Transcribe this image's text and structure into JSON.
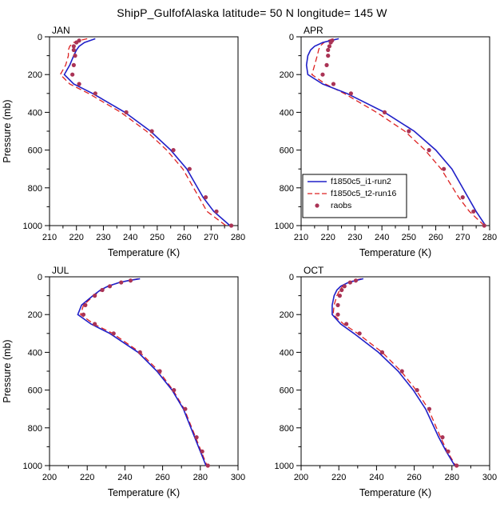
{
  "title": "ShipP_GulfofAlaska  latitude= 50 N longitude= 145 W",
  "colors": {
    "run2": "#2020c8",
    "run16": "#dd2222",
    "raobs": "#aa3355",
    "axis": "#000000"
  },
  "chart_data": {
    "type": "line",
    "title": "ShipP_GulfofAlaska  latitude= 50 N longitude= 145 W",
    "legend": {
      "panel": "APR",
      "position": "lower-left",
      "entries": [
        "f1850c5_i1-run2",
        "f1850c5_t2-run16",
        "raobs"
      ]
    },
    "pressure_levels": [
      10,
      20,
      30,
      50,
      70,
      100,
      150,
      200,
      250,
      300,
      400,
      500,
      600,
      700,
      850,
      925,
      1000
    ],
    "panels": [
      {
        "title": "JAN",
        "xlabel": "Temperature (K)",
        "ylabel": "Pressure (mb)",
        "show_ylabel": true,
        "legend": false,
        "xlim": [
          210,
          280
        ],
        "xticks": [
          210,
          220,
          230,
          240,
          250,
          260,
          270,
          280
        ],
        "xminor": 5,
        "ylim": [
          0,
          1000
        ],
        "yticks": [
          0,
          200,
          400,
          600,
          800,
          1000
        ],
        "yminor": 100,
        "series": [
          {
            "name": "f1850c5_i1-run2",
            "style": "solid",
            "color": "run2",
            "pressure": [
              10,
              20,
              30,
              50,
              70,
              100,
              150,
              200,
              250,
              300,
              400,
              500,
              600,
              700,
              850,
              925,
              1000
            ],
            "values": [
              227,
              225,
              223,
              221,
              220,
              219,
              217.5,
              215.5,
              219,
              226,
              238,
              247.5,
              255,
              261,
              267,
              271,
              277
            ]
          },
          {
            "name": "f1850c5_t2-run16",
            "style": "dashed",
            "color": "run16",
            "pressure": [
              10,
              20,
              30,
              50,
              70,
              100,
              150,
              200,
              250,
              300,
              400,
              500,
              600,
              700,
              850,
              925,
              1000
            ],
            "values": [
              224,
              221,
              219,
              217.5,
              217,
              217,
              216,
              214,
              217.5,
              224.5,
              236.5,
              246,
              253.5,
              259.5,
              265.5,
              268.5,
              275.5
            ]
          },
          {
            "name": "raobs",
            "style": "dots",
            "color": "raobs",
            "pressure": [
              20,
              30,
              50,
              70,
              100,
              150,
              200,
              250,
              300,
              400,
              500,
              600,
              700,
              850,
              925,
              1000
            ],
            "values": [
              221,
              220,
              219,
              219,
              219.5,
              219,
              218.5,
              221,
              227,
              238.5,
              248,
              256,
              262,
              268,
              272,
              277.5
            ]
          }
        ]
      },
      {
        "title": "APR",
        "xlabel": "Temperature (K)",
        "ylabel": "Pressure (mb)",
        "show_ylabel": false,
        "legend": true,
        "xlim": [
          210,
          280
        ],
        "xticks": [
          210,
          220,
          230,
          240,
          250,
          260,
          270,
          280
        ],
        "xminor": 5,
        "ylim": [
          0,
          1000
        ],
        "yticks": [
          0,
          200,
          400,
          600,
          800,
          1000
        ],
        "yminor": 100,
        "series": [
          {
            "name": "f1850c5_i1-run2",
            "style": "solid",
            "color": "run2",
            "pressure": [
              10,
              20,
              30,
              50,
              70,
              100,
              150,
              200,
              250,
              300,
              400,
              500,
              600,
              700,
              850,
              925,
              1000
            ],
            "values": [
              224,
              221,
              218,
              215,
              213.5,
              212.5,
              212,
              212.5,
              218,
              227,
              241,
              252,
              260,
              266,
              272,
              275,
              278.5
            ]
          },
          {
            "name": "f1850c5_t2-run16",
            "style": "dashed",
            "color": "run16",
            "pressure": [
              10,
              20,
              30,
              50,
              70,
              100,
              150,
              200,
              250,
              300,
              400,
              500,
              600,
              700,
              850,
              925,
              1000
            ],
            "values": [
              222,
              220,
              218.5,
              217,
              216.5,
              216,
              215,
              214,
              219,
              226,
              238,
              248.5,
              256,
              262,
              268.5,
              272.5,
              278
            ]
          },
          {
            "name": "raobs",
            "style": "dots",
            "color": "raobs",
            "pressure": [
              20,
              30,
              50,
              70,
              100,
              150,
              200,
              250,
              300,
              400,
              500,
              600,
              700,
              850,
              925,
              1000
            ],
            "values": [
              221.5,
              221,
              220.5,
              220,
              220,
              219.5,
              218,
              222,
              228.5,
              241,
              250,
              257.5,
              263,
              270,
              274,
              278
            ]
          }
        ]
      },
      {
        "title": "JUL",
        "xlabel": "Temperature (K)",
        "ylabel": "Pressure (mb)",
        "show_ylabel": true,
        "legend": false,
        "xlim": [
          200,
          300
        ],
        "xticks": [
          200,
          220,
          240,
          260,
          280,
          300
        ],
        "xminor": 10,
        "ylim": [
          0,
          1000
        ],
        "yticks": [
          0,
          200,
          400,
          600,
          800,
          1000
        ],
        "yminor": 100,
        "series": [
          {
            "name": "f1850c5_i1-run2",
            "style": "solid",
            "color": "run2",
            "pressure": [
              10,
              20,
              30,
              50,
              70,
              100,
              150,
              200,
              250,
              300,
              400,
              500,
              600,
              700,
              850,
              925,
              1000
            ],
            "values": [
              248,
              242,
              237,
              231,
              227,
              223,
              217,
              215,
              222,
              232,
              247,
              257,
              265,
              271,
              277,
              280,
              283
            ]
          },
          {
            "name": "f1850c5_t2-run16",
            "style": "dashed",
            "color": "run16",
            "pressure": [
              10,
              20,
              30,
              50,
              70,
              100,
              150,
              200,
              250,
              300,
              400,
              500,
              600,
              700,
              850,
              925,
              1000
            ],
            "values": [
              247,
              242,
              237,
              231.5,
              227.5,
              223.5,
              218,
              216.5,
              223.5,
              233.5,
              248,
              258,
              265.5,
              271.5,
              277.5,
              280.5,
              283.5
            ]
          },
          {
            "name": "raobs",
            "style": "dots",
            "color": "raobs",
            "pressure": [
              20,
              30,
              50,
              70,
              100,
              150,
              200,
              250,
              300,
              400,
              500,
              600,
              700,
              850,
              925,
              1000
            ],
            "values": [
              243,
              238,
              232,
              228,
              224,
              219,
              218,
              224,
              234,
              248,
              258.5,
              266,
              272,
              278,
              281,
              284
            ]
          }
        ]
      },
      {
        "title": "OCT",
        "xlabel": "Temperature (K)",
        "ylabel": "Pressure (mb)",
        "show_ylabel": false,
        "legend": false,
        "xlim": [
          200,
          300
        ],
        "xticks": [
          200,
          220,
          240,
          260,
          280,
          300
        ],
        "xminor": 10,
        "ylim": [
          0,
          1000
        ],
        "yticks": [
          0,
          200,
          400,
          600,
          800,
          1000
        ],
        "yminor": 100,
        "series": [
          {
            "name": "f1850c5_i1-run2",
            "style": "solid",
            "color": "run2",
            "pressure": [
              10,
              20,
              30,
              50,
              70,
              100,
              150,
              200,
              250,
              300,
              400,
              500,
              600,
              700,
              850,
              925,
              1000
            ],
            "values": [
              233,
              229,
              225,
              221,
              219,
              217.5,
              216.5,
              216.5,
              221,
              228,
              241,
              251.5,
              259.5,
              266,
              273,
              277,
              281.5
            ]
          },
          {
            "name": "f1850c5_t2-run16",
            "style": "dashed",
            "color": "run16",
            "pressure": [
              10,
              20,
              30,
              50,
              70,
              100,
              150,
              200,
              250,
              300,
              400,
              500,
              600,
              700,
              850,
              925,
              1000
            ],
            "values": [
              232,
              228,
              225,
              222,
              220.5,
              219,
              217.5,
              217,
              222.5,
              230,
              243,
              253,
              261,
              267.5,
              274,
              277.5,
              282
            ]
          },
          {
            "name": "raobs",
            "style": "dots",
            "color": "raobs",
            "pressure": [
              20,
              30,
              50,
              70,
              100,
              150,
              200,
              250,
              300,
              400,
              500,
              600,
              700,
              850,
              925,
              1000
            ],
            "values": [
              229,
              226,
              223,
              221.5,
              220.5,
              219.5,
              219.5,
              224,
              231,
              243,
              253.5,
              261.5,
              268,
              275,
              278,
              282.5
            ]
          }
        ]
      }
    ]
  }
}
